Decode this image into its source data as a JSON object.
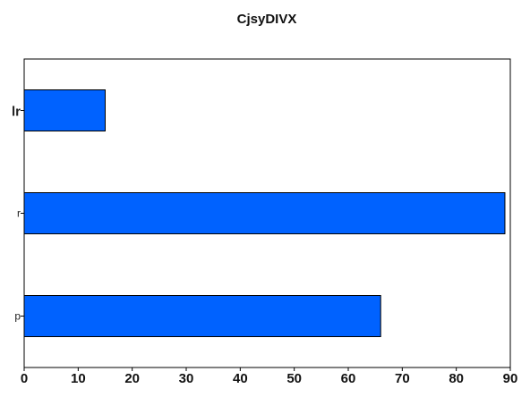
{
  "chart_data": {
    "type": "bar",
    "orientation": "horizontal",
    "title": "CjsyDIVX",
    "xlabel": "",
    "ylabel": "",
    "categories": [
      "lr",
      "r",
      "p"
    ],
    "values": [
      15,
      89,
      66
    ],
    "xlim": [
      0,
      90
    ],
    "xticks": [
      0,
      10,
      20,
      30,
      40,
      50,
      60,
      70,
      80,
      90
    ],
    "grid": false,
    "legend": "none",
    "bar_color": "#0062ff",
    "edge_color": "#000000"
  }
}
